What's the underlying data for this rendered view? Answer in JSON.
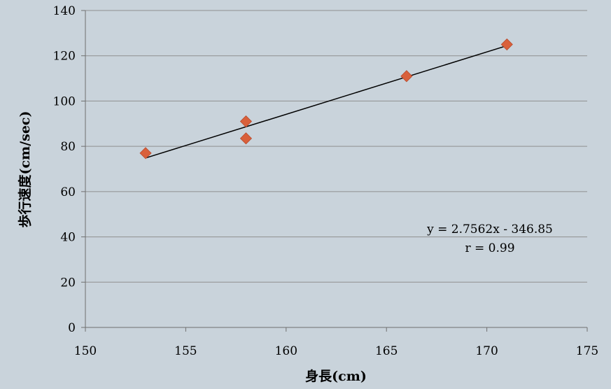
{
  "chart_data": {
    "type": "scatter",
    "title": "",
    "xlabel": "身長(cm)",
    "ylabel": "歩行速度(cm/sec)",
    "xlim": [
      150,
      175
    ],
    "ylim": [
      0,
      140
    ],
    "xticks": [
      150,
      155,
      160,
      165,
      170,
      175
    ],
    "yticks": [
      0,
      20,
      40,
      60,
      80,
      100,
      120,
      140
    ],
    "grid": "horizontal",
    "series": [
      {
        "x": [
          153,
          158,
          158,
          166,
          171
        ],
        "y": [
          77,
          91,
          83.5,
          111,
          125
        ]
      }
    ],
    "trendline": {
      "type": "linear",
      "slope": 2.7562,
      "intercept": -346.85,
      "x_range": [
        153,
        171
      ],
      "equation_label": "y = 2.7562x - 346.85",
      "r_label": "r = 0.99"
    },
    "colors": {
      "background": "#c9d3db",
      "marker": "#d9603b",
      "trendline": "#000000",
      "grid": "#8f8f8f"
    },
    "marker_shape": "diamond"
  }
}
